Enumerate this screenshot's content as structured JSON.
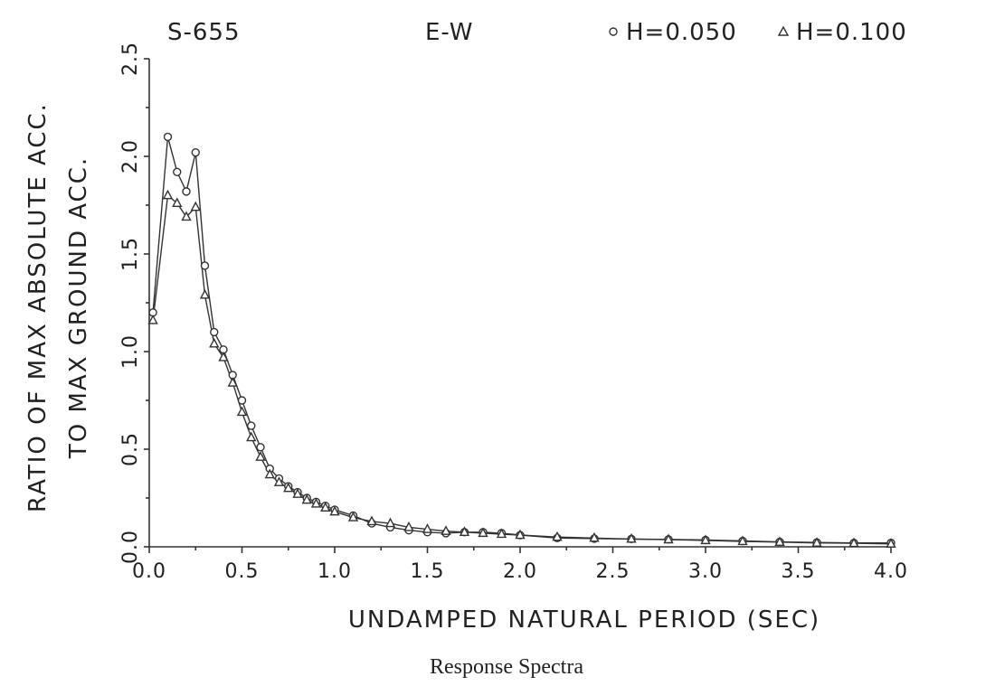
{
  "chart_data": {
    "type": "line",
    "station": "S-655",
    "component": "E-W",
    "xlabel": "UNDAMPED NATURAL PERIOD (SEC)",
    "ylabel_line1": "RATIO OF MAX ABSOLUTE ACC.",
    "ylabel_line2": "TO MAX GROUND ACC.",
    "caption": "Response Spectra",
    "xlim": [
      0.0,
      4.0
    ],
    "ylim": [
      0.0,
      2.5
    ],
    "xticks": [
      {
        "value": 0.0,
        "label": "0.0"
      },
      {
        "value": 0.5,
        "label": "0.5"
      },
      {
        "value": 1.0,
        "label": "1.0"
      },
      {
        "value": 1.5,
        "label": "1.5"
      },
      {
        "value": 2.0,
        "label": "2.0"
      },
      {
        "value": 2.5,
        "label": "2.5"
      },
      {
        "value": 3.0,
        "label": "3.0"
      },
      {
        "value": 3.5,
        "label": "3.5"
      },
      {
        "value": 4.0,
        "label": "4.0"
      }
    ],
    "yticks": [
      {
        "value": 0.0,
        "label": "0.0"
      },
      {
        "value": 0.5,
        "label": "0.5"
      },
      {
        "value": 1.0,
        "label": "1.0"
      },
      {
        "value": 1.5,
        "label": "1.5"
      },
      {
        "value": 2.0,
        "label": "2.0"
      },
      {
        "value": 2.5,
        "label": "2.5"
      }
    ],
    "legend_position": "top-right",
    "series": [
      {
        "name": "H=0.050",
        "marker": "circle",
        "points": [
          [
            0.02,
            1.2
          ],
          [
            0.1,
            2.1
          ],
          [
            0.15,
            1.92
          ],
          [
            0.2,
            1.82
          ],
          [
            0.25,
            2.02
          ],
          [
            0.3,
            1.44
          ],
          [
            0.35,
            1.1
          ],
          [
            0.4,
            1.01
          ],
          [
            0.45,
            0.88
          ],
          [
            0.5,
            0.75
          ],
          [
            0.55,
            0.62
          ],
          [
            0.6,
            0.51
          ],
          [
            0.65,
            0.4
          ],
          [
            0.7,
            0.35
          ],
          [
            0.75,
            0.31
          ],
          [
            0.8,
            0.28
          ],
          [
            0.85,
            0.25
          ],
          [
            0.9,
            0.23
          ],
          [
            0.95,
            0.21
          ],
          [
            1.0,
            0.19
          ],
          [
            1.1,
            0.16
          ],
          [
            1.2,
            0.12
          ],
          [
            1.3,
            0.1
          ],
          [
            1.4,
            0.085
          ],
          [
            1.5,
            0.075
          ],
          [
            1.6,
            0.07
          ],
          [
            1.7,
            0.075
          ],
          [
            1.8,
            0.075
          ],
          [
            1.9,
            0.07
          ],
          [
            2.0,
            0.06
          ],
          [
            2.2,
            0.045
          ],
          [
            2.4,
            0.042
          ],
          [
            2.6,
            0.04
          ],
          [
            2.8,
            0.038
          ],
          [
            3.0,
            0.035
          ],
          [
            3.2,
            0.03
          ],
          [
            3.4,
            0.025
          ],
          [
            3.6,
            0.022
          ],
          [
            3.8,
            0.02
          ],
          [
            4.0,
            0.02
          ]
        ]
      },
      {
        "name": "H=0.100",
        "marker": "triangle",
        "points": [
          [
            0.02,
            1.16
          ],
          [
            0.1,
            1.8
          ],
          [
            0.15,
            1.76
          ],
          [
            0.2,
            1.69
          ],
          [
            0.25,
            1.74
          ],
          [
            0.3,
            1.29
          ],
          [
            0.35,
            1.04
          ],
          [
            0.4,
            0.97
          ],
          [
            0.45,
            0.84
          ],
          [
            0.5,
            0.69
          ],
          [
            0.55,
            0.56
          ],
          [
            0.6,
            0.46
          ],
          [
            0.65,
            0.37
          ],
          [
            0.7,
            0.33
          ],
          [
            0.75,
            0.3
          ],
          [
            0.8,
            0.27
          ],
          [
            0.85,
            0.24
          ],
          [
            0.9,
            0.22
          ],
          [
            0.95,
            0.2
          ],
          [
            1.0,
            0.18
          ],
          [
            1.1,
            0.15
          ],
          [
            1.2,
            0.13
          ],
          [
            1.3,
            0.12
          ],
          [
            1.4,
            0.1
          ],
          [
            1.5,
            0.09
          ],
          [
            1.6,
            0.08
          ],
          [
            1.7,
            0.075
          ],
          [
            1.8,
            0.07
          ],
          [
            1.9,
            0.065
          ],
          [
            2.0,
            0.06
          ],
          [
            2.2,
            0.05
          ],
          [
            2.4,
            0.045
          ],
          [
            2.6,
            0.04
          ],
          [
            2.8,
            0.037
          ],
          [
            3.0,
            0.033
          ],
          [
            3.2,
            0.028
          ],
          [
            3.4,
            0.024
          ],
          [
            3.6,
            0.02
          ],
          [
            3.8,
            0.018
          ],
          [
            4.0,
            0.015
          ]
        ]
      }
    ]
  }
}
